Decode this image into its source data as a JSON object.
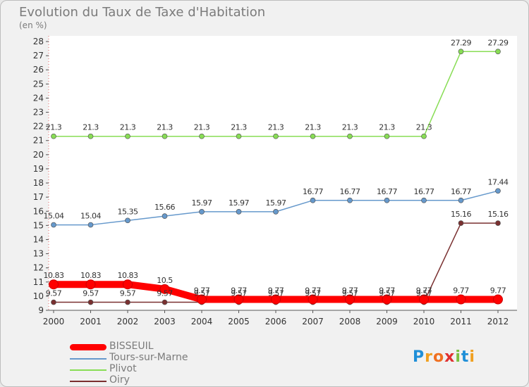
{
  "chart_data": {
    "type": "line",
    "title": "Evolution du Taux de Taxe d'Habitation",
    "subtitle": "(en %)",
    "categories": [
      "2000",
      "2001",
      "2002",
      "2003",
      "2004",
      "2005",
      "2006",
      "2007",
      "2008",
      "2009",
      "2010",
      "2011",
      "2012"
    ],
    "ylim": [
      9,
      28
    ],
    "yticks": [
      9,
      10,
      11,
      12,
      13,
      14,
      15,
      16,
      17,
      18,
      19,
      20,
      21,
      22,
      23,
      24,
      25,
      26,
      27,
      28
    ],
    "grid": false,
    "legend_position": "bottom-left",
    "series": [
      {
        "name": "BISSEUIL",
        "color": "#ff0000",
        "values": [
          10.83,
          10.83,
          10.83,
          10.5,
          9.77,
          9.77,
          9.77,
          9.77,
          9.77,
          9.77,
          9.77,
          9.77,
          9.77
        ],
        "labels": [
          "10.83",
          "10.83",
          "10.83",
          "10.5",
          "9.77",
          "9.77",
          "9.77",
          "9.77",
          "9.77",
          "9.77",
          "9.77",
          "9.77",
          "9.77"
        ]
      },
      {
        "name": "Tours-sur-Marne",
        "color": "#6699cc",
        "values": [
          15.04,
          15.04,
          15.35,
          15.66,
          15.97,
          15.97,
          15.97,
          16.77,
          16.77,
          16.77,
          16.77,
          16.77,
          17.44
        ],
        "labels": [
          "15.04",
          "15.04",
          "15.35",
          "15.66",
          "15.97",
          "15.97",
          "15.97",
          "16.77",
          "16.77",
          "16.77",
          "16.77",
          "16.77",
          "17.44"
        ]
      },
      {
        "name": "Plivot",
        "color": "#88dd55",
        "values": [
          21.3,
          21.3,
          21.3,
          21.3,
          21.3,
          21.3,
          21.3,
          21.3,
          21.3,
          21.3,
          21.3,
          27.29,
          27.29
        ],
        "labels": [
          "21.3",
          "21.3",
          "21.3",
          "21.3",
          "21.3",
          "21.3",
          "21.3",
          "21.3",
          "21.3",
          "21.3",
          "21.3",
          "27.29",
          "27.29"
        ]
      },
      {
        "name": "Oiry",
        "color": "#7a3030",
        "values": [
          9.57,
          9.57,
          9.57,
          9.57,
          9.57,
          9.57,
          9.57,
          9.57,
          9.57,
          9.57,
          9.57,
          15.16,
          15.16
        ],
        "labels": [
          "9.57",
          "9.57",
          "9.57",
          "9.57",
          "9.57",
          "9.57",
          "9.57",
          "9.57",
          "9.57",
          "9.57",
          "9.57",
          "15.16",
          "15.16"
        ]
      }
    ]
  },
  "logo": {
    "letters": [
      "P",
      "r",
      "o",
      "x",
      "i",
      "t",
      "i"
    ],
    "colors": [
      "#1f8fd8",
      "#f0a020",
      "#f07020",
      "#e03030",
      "#7cc040",
      "#1f8fd8",
      "#f0a020"
    ]
  }
}
